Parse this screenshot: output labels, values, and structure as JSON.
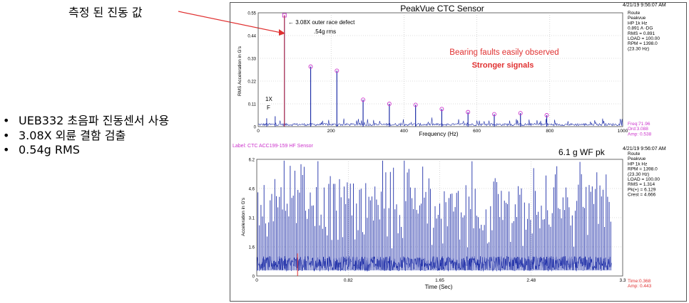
{
  "slide": {
    "callout_text": "측정 된 진동 값",
    "bullets": [
      "UEB332 초음파 진동센서 사용",
      "3.08X 외륜 결함 검출",
      "0.54g RMS"
    ]
  },
  "colors": {
    "signal": "#1f2fa8",
    "marker": "#cc33cc",
    "highlight": "#e03030",
    "info_magenta": "#cc33cc",
    "cursor": "#e03030",
    "callout_arrow": "#e03030"
  },
  "chart_data": [
    {
      "type": "line",
      "title": "PeakVue CTC Sensor",
      "xlabel": "Frequency (Hz)",
      "ylabel": "RMS Acceleration in G's",
      "xlim": [
        0,
        1000
      ],
      "ylim": [
        0,
        0.55
      ],
      "xticks": [
        "0",
        "200",
        "400",
        "600",
        "800",
        "1000"
      ],
      "yticks": [
        "0",
        "0.11",
        "0.22",
        "0.33",
        "0.44",
        "0.55"
      ],
      "grid": true,
      "timestamp": "4/21/19 9:56:07 AM",
      "info": [
        "Route",
        "Peakvue",
        "HP 1k Hz",
        "0.891 A -DG",
        "RMS = 0.891",
        "LOAD = 100.00",
        "RPM = 1398.0",
        "(23.30 Hz)"
      ],
      "cursor_readout": [
        "Freq:71.96",
        "Ord:3.088",
        "Amp: 0.538"
      ],
      "annotations": {
        "outer_race": "← 3.08X outer race defect",
        "rms": ".54g rms",
        "order_1x": "1X",
        "order_f": "F",
        "faults": "Bearing faults easily observed",
        "stronger": "Stronger signals"
      },
      "fault_harmonics": [
        {
          "x": 71.96,
          "y": 0.538
        },
        {
          "x": 143.9,
          "y": 0.29
        },
        {
          "x": 215.9,
          "y": 0.27
        },
        {
          "x": 287.8,
          "y": 0.13
        },
        {
          "x": 359.8,
          "y": 0.11
        },
        {
          "x": 431.8,
          "y": 0.105
        },
        {
          "x": 503.7,
          "y": 0.085
        },
        {
          "x": 575.7,
          "y": 0.07
        },
        {
          "x": 647.7,
          "y": 0.06
        },
        {
          "x": 719.6,
          "y": 0.065
        },
        {
          "x": 791.6,
          "y": 0.055
        }
      ],
      "running_speed_harmonics": [
        {
          "x": 23.3,
          "y": 0.04
        },
        {
          "x": 46.6,
          "y": 0.05
        }
      ]
    },
    {
      "type": "line",
      "label": "Label: CTC ACC199-159 HF Sensor",
      "note": "6.1 g WF pk",
      "xlabel": "Time (Sec)",
      "ylabel": "Acceleration in G's",
      "xlim": [
        0,
        3.3
      ],
      "ylim": [
        0,
        6.2
      ],
      "xticks": [
        "0",
        "0.82",
        "1.65",
        "2.48",
        "3.3"
      ],
      "yticks": [
        "0",
        "1.6",
        "3.1",
        "4.6",
        "6.2"
      ],
      "grid": true,
      "timestamp": "4/21/19 9:56:07 AM",
      "info": [
        "Route",
        "Peakvue",
        "HP 1k Hz",
        "RPM = 1398.0",
        "(23.30 Hz)",
        "LOAD = 100.00",
        "RMS = 1.314",
        "Pk(+) = 6.129",
        "Crest = 4.666"
      ],
      "cursor_readout": [
        "Time:0.368",
        "Amp: 0.443"
      ],
      "cursor": {
        "x": 0.368,
        "y": 0.443
      },
      "peak": 6.129,
      "rms": 1.314
    }
  ]
}
